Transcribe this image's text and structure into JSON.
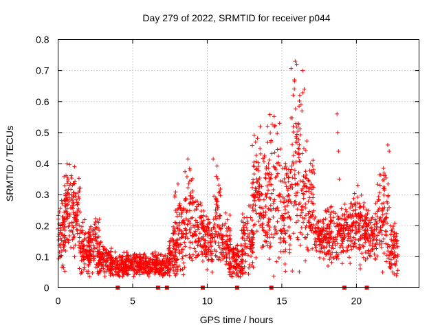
{
  "chart_data": {
    "type": "scatter",
    "title": "Day 279 of 2022, SRMTID for receiver p044",
    "xlabel": "GPS time / hours",
    "ylabel": "SRMTID / TECUs",
    "xlim": [
      0,
      24.2
    ],
    "ylim": [
      0,
      0.8
    ],
    "xticks": [
      0,
      5,
      10,
      15,
      20
    ],
    "xtick_labels": [
      "0",
      "5",
      "10",
      "15",
      "20"
    ],
    "yticks": [
      0,
      0.1,
      0.2,
      0.3,
      0.4,
      0.5,
      0.6,
      0.7,
      0.8
    ],
    "ytick_labels": [
      "0",
      "0.1",
      "0.2",
      "0.3",
      "0.4",
      "0.5",
      "0.6",
      "0.7",
      "0.8"
    ],
    "grid": true,
    "marker": "+",
    "color": "#ff0000",
    "series": [
      {
        "name": "SRMTID",
        "segments": [
          {
            "start": 0.0,
            "end": 0.55,
            "level": 0.17,
            "amp": 0.09
          },
          {
            "start": 0.4,
            "end": 1.1,
            "level": 0.26,
            "amp": 0.1
          },
          {
            "start": 1.0,
            "end": 1.5,
            "level": 0.24,
            "amp": 0.1
          },
          {
            "start": 1.4,
            "end": 2.2,
            "level": 0.12,
            "amp": 0.06
          },
          {
            "start": 2.0,
            "end": 2.8,
            "level": 0.14,
            "amp": 0.07
          },
          {
            "start": 2.6,
            "end": 3.6,
            "level": 0.09,
            "amp": 0.04
          },
          {
            "start": 3.5,
            "end": 4.6,
            "level": 0.07,
            "amp": 0.03
          },
          {
            "start": 4.5,
            "end": 5.5,
            "level": 0.075,
            "amp": 0.03
          },
          {
            "start": 5.4,
            "end": 6.6,
            "level": 0.07,
            "amp": 0.03
          },
          {
            "start": 6.5,
            "end": 7.5,
            "level": 0.07,
            "amp": 0.03
          },
          {
            "start": 7.4,
            "end": 8.0,
            "level": 0.11,
            "amp": 0.05
          },
          {
            "start": 7.7,
            "end": 8.4,
            "level": 0.19,
            "amp": 0.12
          },
          {
            "start": 8.4,
            "end": 9.1,
            "level": 0.22,
            "amp": 0.12
          },
          {
            "start": 9.1,
            "end": 9.8,
            "level": 0.2,
            "amp": 0.1
          },
          {
            "start": 9.8,
            "end": 10.4,
            "level": 0.14,
            "amp": 0.07
          },
          {
            "start": 10.4,
            "end": 10.9,
            "level": 0.22,
            "amp": 0.13
          },
          {
            "start": 10.9,
            "end": 11.6,
            "level": 0.14,
            "amp": 0.07
          },
          {
            "start": 11.5,
            "end": 12.4,
            "level": 0.09,
            "amp": 0.05
          },
          {
            "start": 12.3,
            "end": 13.1,
            "level": 0.15,
            "amp": 0.08
          },
          {
            "start": 13.0,
            "end": 13.9,
            "level": 0.29,
            "amp": 0.15
          },
          {
            "start": 13.9,
            "end": 14.8,
            "level": 0.32,
            "amp": 0.18
          },
          {
            "start": 14.8,
            "end": 15.6,
            "level": 0.26,
            "amp": 0.15
          },
          {
            "start": 15.6,
            "end": 16.4,
            "level": 0.36,
            "amp": 0.24
          },
          {
            "start": 16.4,
            "end": 17.2,
            "level": 0.27,
            "amp": 0.13
          },
          {
            "start": 17.2,
            "end": 18.0,
            "level": 0.16,
            "amp": 0.06
          },
          {
            "start": 18.0,
            "end": 18.8,
            "level": 0.17,
            "amp": 0.07
          },
          {
            "start": 18.8,
            "end": 19.6,
            "level": 0.18,
            "amp": 0.08
          },
          {
            "start": 19.6,
            "end": 20.6,
            "level": 0.2,
            "amp": 0.09
          },
          {
            "start": 20.6,
            "end": 21.4,
            "level": 0.17,
            "amp": 0.07
          },
          {
            "start": 21.4,
            "end": 22.2,
            "level": 0.24,
            "amp": 0.13
          },
          {
            "start": 22.2,
            "end": 22.8,
            "level": 0.12,
            "amp": 0.07
          }
        ],
        "spikes": [
          {
            "x": 15.9,
            "y": 0.73
          },
          {
            "x": 16.0,
            "y": 0.72
          },
          {
            "x": 16.4,
            "y": 0.7
          },
          {
            "x": 15.85,
            "y": 0.67
          },
          {
            "x": 16.5,
            "y": 0.64
          },
          {
            "x": 16.2,
            "y": 0.62
          },
          {
            "x": 16.35,
            "y": 0.57
          },
          {
            "x": 16.1,
            "y": 0.53
          },
          {
            "x": 18.7,
            "y": 0.56
          },
          {
            "x": 18.75,
            "y": 0.5
          },
          {
            "x": 18.8,
            "y": 0.44
          },
          {
            "x": 18.85,
            "y": 0.35
          },
          {
            "x": 14.85,
            "y": 0.53
          },
          {
            "x": 14.5,
            "y": 0.52
          },
          {
            "x": 13.55,
            "y": 0.52
          },
          {
            "x": 22.1,
            "y": 0.46
          },
          {
            "x": 22.2,
            "y": 0.44
          },
          {
            "x": 10.4,
            "y": 0.415
          },
          {
            "x": 0.6,
            "y": 0.4
          },
          {
            "x": 1.1,
            "y": 0.39
          },
          {
            "x": 8.7,
            "y": 0.415
          },
          {
            "x": 20.1,
            "y": 0.33
          }
        ],
        "baseline_markers": [
          4.0,
          6.7,
          7.3,
          9.7,
          12.0,
          14.3,
          19.2,
          20.7
        ]
      }
    ]
  }
}
